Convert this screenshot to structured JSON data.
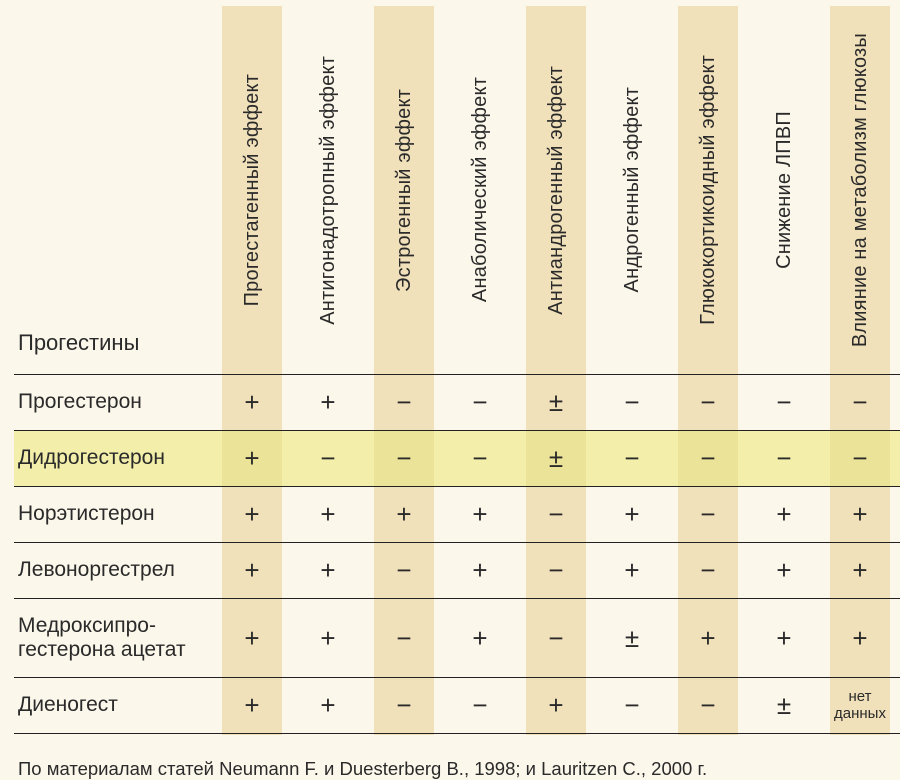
{
  "table": {
    "type": "table",
    "background_color": "#fbf7ea",
    "stripe_color": "#f1e1bb",
    "highlight_row_color": "#f3efaa",
    "highlight_row_stripe_color": "#eae398",
    "text_color": "#2a2a2a",
    "rule_color": "#222222",
    "header_fontsize": 20,
    "rowlabel_fontsize": 21,
    "cell_fontsize": 26,
    "corner_label": "Прогестины",
    "columns": [
      "Прогестагенный эффект",
      "Антигонадотропный эффект",
      "Эстрогенный эффект",
      "Анаболический эффект",
      "Антиандрогенный эффект",
      "Андрогенный эффект",
      "Глюкокортикоидный эффект",
      "Снижение ЛПВП",
      "Влияние на метаболизм глюкозы"
    ],
    "striped_columns": [
      0,
      2,
      4,
      6,
      8
    ],
    "rows": [
      {
        "label": "Прогестерон",
        "cells": [
          "+",
          "+",
          "−",
          "−",
          "±",
          "−",
          "−",
          "−",
          "−"
        ]
      },
      {
        "label": "Дидрогестерон",
        "highlight": true,
        "cells": [
          "+",
          "−",
          "−",
          "−",
          "±",
          "−",
          "−",
          "−",
          "−"
        ]
      },
      {
        "label": "Норэтистерон",
        "cells": [
          "+",
          "+",
          "+",
          "+",
          "−",
          "+",
          "−",
          "+",
          "+"
        ]
      },
      {
        "label": "Левоноргестрел",
        "cells": [
          "+",
          "+",
          "−",
          "+",
          "−",
          "+",
          "−",
          "+",
          "+"
        ]
      },
      {
        "label": "Медроксипро-\nгестерона ацетат",
        "tall": true,
        "cells": [
          "+",
          "+",
          "−",
          "+",
          "−",
          "±",
          "+",
          "+",
          "+"
        ]
      },
      {
        "label": "Диеногест",
        "cells": [
          "+",
          "+",
          "−",
          "−",
          "+",
          "−",
          "−",
          "±",
          "нет данных"
        ]
      }
    ]
  },
  "footnote": "По материалам статей Neumann F. и Duesterberg B., 1998; и Lauritzen C., 2000 г."
}
